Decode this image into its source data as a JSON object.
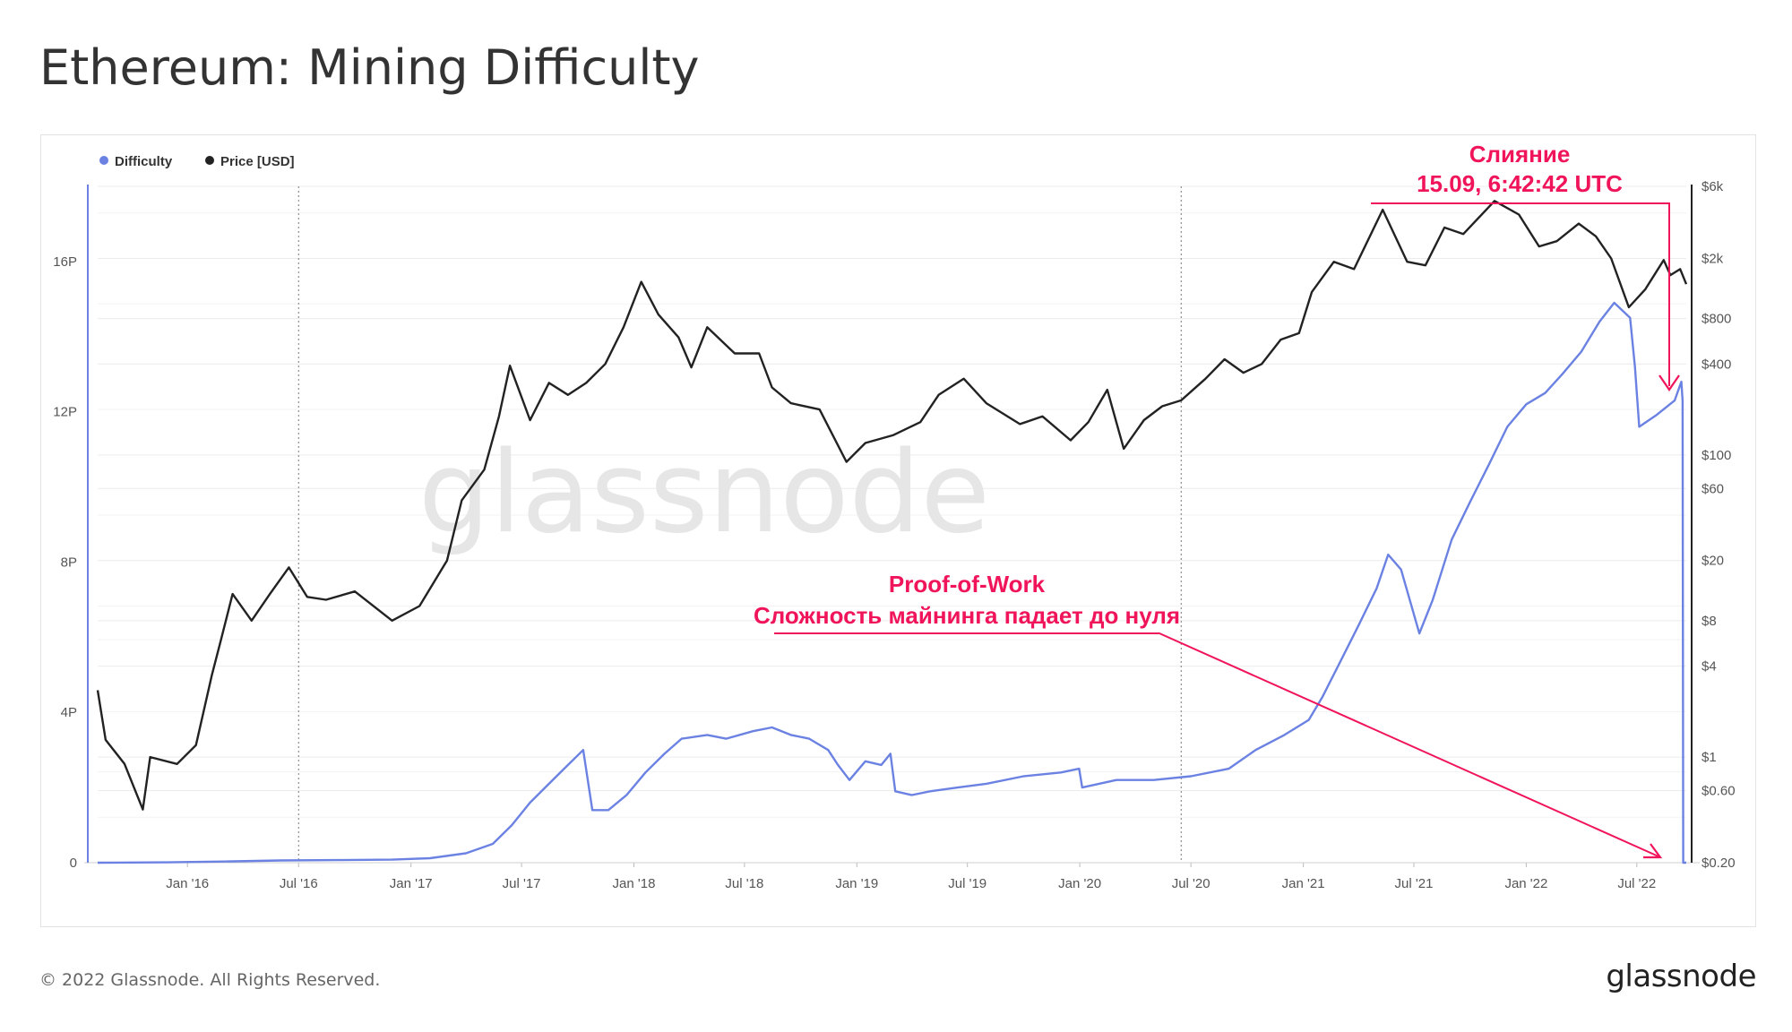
{
  "page": {
    "title": "Ethereum: Mining Difficulty",
    "copyright": "© 2022 Glassnode. All Rights Reserved.",
    "footer_logo": "glassnode",
    "watermark": "glassnode"
  },
  "colors": {
    "difficulty": "#6b82e3",
    "price": "#222222",
    "annotation": "#f0145a",
    "grid": "#ececec",
    "axis_text": "#555555"
  },
  "chart_data": {
    "type": "line",
    "legend": {
      "placement": "top-left",
      "items": [
        {
          "label": "Difficulty",
          "color": "#6b82e3"
        },
        {
          "label": "Price [USD]",
          "color": "#222222"
        }
      ]
    },
    "x_ticks": [
      "Jan '16",
      "Jul '16",
      "Jan '17",
      "Jul '17",
      "Jan '18",
      "Jul '18",
      "Jan '19",
      "Jul '19",
      "Jan '20",
      "Jul '20",
      "Jan '21",
      "Jul '21",
      "Jan '22",
      "Jul '22"
    ],
    "x_range": [
      "2015-08-07",
      "2022-09-20"
    ],
    "left_axis": {
      "scale": "linear",
      "range": [
        0,
        18
      ],
      "ticks": [
        {
          "v": 0,
          "label": "0"
        },
        {
          "v": 4,
          "label": "4P"
        },
        {
          "v": 8,
          "label": "8P"
        },
        {
          "v": 12,
          "label": "12P"
        },
        {
          "v": 16,
          "label": "16P"
        }
      ]
    },
    "right_axis": {
      "scale": "log",
      "range": [
        0.2,
        6000
      ],
      "ticks": [
        {
          "v": 0.2,
          "label": "$0.20"
        },
        {
          "v": 0.6,
          "label": "$0.60"
        },
        {
          "v": 1,
          "label": "$1"
        },
        {
          "v": 4,
          "label": "$4"
        },
        {
          "v": 8,
          "label": "$8"
        },
        {
          "v": 20,
          "label": "$20"
        },
        {
          "v": 60,
          "label": "$60"
        },
        {
          "v": 100,
          "label": "$100"
        },
        {
          "v": 400,
          "label": "$400"
        },
        {
          "v": 800,
          "label": "$800"
        },
        {
          "v": 2000,
          "label": "$2k"
        },
        {
          "v": 6000,
          "label": "$6k"
        }
      ]
    },
    "series": [
      {
        "name": "Difficulty",
        "axis": "left",
        "unit": "P",
        "points": [
          [
            "2015-08-07",
            0.0
          ],
          [
            "2015-12-01",
            0.01
          ],
          [
            "2016-03-01",
            0.03
          ],
          [
            "2016-06-01",
            0.06
          ],
          [
            "2016-09-01",
            0.07
          ],
          [
            "2016-12-01",
            0.08
          ],
          [
            "2017-02-01",
            0.12
          ],
          [
            "2017-04-01",
            0.25
          ],
          [
            "2017-05-15",
            0.5
          ],
          [
            "2017-06-15",
            1.0
          ],
          [
            "2017-07-15",
            1.6
          ],
          [
            "2017-08-15",
            2.1
          ],
          [
            "2017-09-15",
            2.6
          ],
          [
            "2017-10-10",
            3.0
          ],
          [
            "2017-10-25",
            1.4
          ],
          [
            "2017-11-20",
            1.4
          ],
          [
            "2017-12-20",
            1.8
          ],
          [
            "2018-01-20",
            2.4
          ],
          [
            "2018-02-20",
            2.9
          ],
          [
            "2018-03-20",
            3.3
          ],
          [
            "2018-05-01",
            3.4
          ],
          [
            "2018-06-01",
            3.3
          ],
          [
            "2018-07-15",
            3.5
          ],
          [
            "2018-08-15",
            3.6
          ],
          [
            "2018-09-15",
            3.4
          ],
          [
            "2018-10-15",
            3.3
          ],
          [
            "2018-11-15",
            3.0
          ],
          [
            "2018-12-01",
            2.6
          ],
          [
            "2018-12-20",
            2.2
          ],
          [
            "2019-01-15",
            2.7
          ],
          [
            "2019-02-10",
            2.6
          ],
          [
            "2019-02-25",
            2.9
          ],
          [
            "2019-03-05",
            1.9
          ],
          [
            "2019-04-01",
            1.8
          ],
          [
            "2019-05-01",
            1.9
          ],
          [
            "2019-06-15",
            2.0
          ],
          [
            "2019-08-01",
            2.1
          ],
          [
            "2019-10-01",
            2.3
          ],
          [
            "2019-12-01",
            2.4
          ],
          [
            "2019-12-31",
            2.5
          ],
          [
            "2020-01-05",
            2.0
          ],
          [
            "2020-03-01",
            2.2
          ],
          [
            "2020-05-01",
            2.2
          ],
          [
            "2020-07-01",
            2.3
          ],
          [
            "2020-09-01",
            2.5
          ],
          [
            "2020-10-15",
            3.0
          ],
          [
            "2020-12-01",
            3.4
          ],
          [
            "2021-01-10",
            3.8
          ],
          [
            "2021-02-01",
            4.4
          ],
          [
            "2021-03-01",
            5.3
          ],
          [
            "2021-04-01",
            6.3
          ],
          [
            "2021-05-01",
            7.3
          ],
          [
            "2021-05-20",
            8.2
          ],
          [
            "2021-06-10",
            7.8
          ],
          [
            "2021-07-10",
            6.1
          ],
          [
            "2021-08-01",
            7.0
          ],
          [
            "2021-09-01",
            8.6
          ],
          [
            "2021-10-01",
            9.6
          ],
          [
            "2021-11-01",
            10.6
          ],
          [
            "2021-12-01",
            11.6
          ],
          [
            "2022-01-01",
            12.2
          ],
          [
            "2022-02-01",
            12.5
          ],
          [
            "2022-03-01",
            13.0
          ],
          [
            "2022-04-01",
            13.6
          ],
          [
            "2022-05-01",
            14.4
          ],
          [
            "2022-05-25",
            14.9
          ],
          [
            "2022-06-20",
            14.5
          ],
          [
            "2022-06-28",
            13.2
          ],
          [
            "2022-07-05",
            11.6
          ],
          [
            "2022-08-01",
            11.9
          ],
          [
            "2022-09-01",
            12.3
          ],
          [
            "2022-09-12",
            12.8
          ],
          [
            "2022-09-14",
            12.3
          ],
          [
            "2022-09-15",
            0.0
          ],
          [
            "2022-09-20",
            0.0
          ]
        ]
      },
      {
        "name": "Price [USD]",
        "axis": "right",
        "unit": "USD",
        "points": [
          [
            "2015-08-07",
            2.77
          ],
          [
            "2015-08-20",
            1.3
          ],
          [
            "2015-09-20",
            0.9
          ],
          [
            "2015-10-20",
            0.45
          ],
          [
            "2015-11-01",
            1.0
          ],
          [
            "2015-12-15",
            0.9
          ],
          [
            "2016-01-15",
            1.2
          ],
          [
            "2016-02-10",
            3.5
          ],
          [
            "2016-02-25",
            6.0
          ],
          [
            "2016-03-15",
            12.0
          ],
          [
            "2016-04-15",
            8.0
          ],
          [
            "2016-05-15",
            12.0
          ],
          [
            "2016-06-15",
            18.0
          ],
          [
            "2016-07-15",
            11.5
          ],
          [
            "2016-08-15",
            11.0
          ],
          [
            "2016-10-01",
            12.5
          ],
          [
            "2016-12-01",
            8.0
          ],
          [
            "2017-01-15",
            10.0
          ],
          [
            "2017-03-01",
            20.0
          ],
          [
            "2017-03-25",
            50.0
          ],
          [
            "2017-05-01",
            80.0
          ],
          [
            "2017-05-25",
            180.0
          ],
          [
            "2017-06-12",
            390.0
          ],
          [
            "2017-07-15",
            170.0
          ],
          [
            "2017-08-15",
            300.0
          ],
          [
            "2017-09-15",
            250.0
          ],
          [
            "2017-10-15",
            300.0
          ],
          [
            "2017-11-15",
            400.0
          ],
          [
            "2017-12-15",
            700.0
          ],
          [
            "2018-01-13",
            1400.0
          ],
          [
            "2018-02-10",
            850.0
          ],
          [
            "2018-03-15",
            600.0
          ],
          [
            "2018-04-05",
            380.0
          ],
          [
            "2018-05-01",
            700.0
          ],
          [
            "2018-06-15",
            470.0
          ],
          [
            "2018-07-25",
            470.0
          ],
          [
            "2018-08-15",
            280.0
          ],
          [
            "2018-09-15",
            220.0
          ],
          [
            "2018-11-01",
            200.0
          ],
          [
            "2018-12-15",
            90.0
          ],
          [
            "2019-01-15",
            120.0
          ],
          [
            "2019-03-01",
            135.0
          ],
          [
            "2019-04-15",
            165.0
          ],
          [
            "2019-05-15",
            250.0
          ],
          [
            "2019-06-25",
            320.0
          ],
          [
            "2019-08-01",
            220.0
          ],
          [
            "2019-09-25",
            160.0
          ],
          [
            "2019-11-01",
            180.0
          ],
          [
            "2019-12-17",
            125.0
          ],
          [
            "2020-01-15",
            165.0
          ],
          [
            "2020-02-15",
            270.0
          ],
          [
            "2020-03-13",
            110.0
          ],
          [
            "2020-04-15",
            170.0
          ],
          [
            "2020-05-15",
            210.0
          ],
          [
            "2020-06-15",
            230.0
          ],
          [
            "2020-07-25",
            320.0
          ],
          [
            "2020-08-25",
            430.0
          ],
          [
            "2020-09-25",
            350.0
          ],
          [
            "2020-10-25",
            400.0
          ],
          [
            "2020-11-25",
            580.0
          ],
          [
            "2020-12-25",
            640.0
          ],
          [
            "2021-01-15",
            1200.0
          ],
          [
            "2021-02-20",
            1900.0
          ],
          [
            "2021-03-25",
            1700.0
          ],
          [
            "2021-05-11",
            4200.0
          ],
          [
            "2021-06-20",
            1900.0
          ],
          [
            "2021-07-20",
            1800.0
          ],
          [
            "2021-08-20",
            3200.0
          ],
          [
            "2021-09-20",
            2900.0
          ],
          [
            "2021-11-10",
            4800.0
          ],
          [
            "2021-12-20",
            3900.0
          ],
          [
            "2022-01-22",
            2400.0
          ],
          [
            "2022-02-20",
            2600.0
          ],
          [
            "2022-03-28",
            3400.0
          ],
          [
            "2022-04-25",
            2800.0
          ],
          [
            "2022-05-20",
            2000.0
          ],
          [
            "2022-06-18",
            950.0
          ],
          [
            "2022-07-15",
            1250.0
          ],
          [
            "2022-08-14",
            1950.0
          ],
          [
            "2022-08-25",
            1550.0
          ],
          [
            "2022-09-10",
            1700.0
          ],
          [
            "2022-09-20",
            1350.0
          ]
        ]
      }
    ],
    "vertical_markers": [
      "2016-07-01",
      "2020-06-15"
    ],
    "annotations": [
      {
        "lines": [
          "Слияние",
          "15.09, 6:42:42 UTC"
        ]
      },
      {
        "lines": [
          "Proof-of-Work",
          "Сложность майнинга падает до нуля"
        ]
      }
    ]
  }
}
